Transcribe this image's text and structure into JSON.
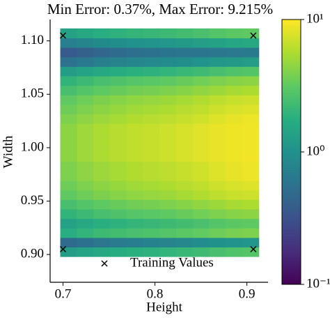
{
  "chart_data": {
    "type": "heatmap",
    "title": "Min Error: 0.37%,  Max Error: 9.215%",
    "xlabel": "Height",
    "ylabel": "Width",
    "x": [
      0.706,
      0.724,
      0.742,
      0.76,
      0.778,
      0.796,
      0.814,
      0.832,
      0.85,
      0.868,
      0.886,
      0.904
    ],
    "y": [
      0.9025,
      0.9114,
      0.9203,
      0.9292,
      0.9381,
      0.947,
      0.9559,
      0.9648,
      0.9737,
      0.9826,
      0.9915,
      1.0004,
      1.0093,
      1.0182,
      1.0271,
      1.036,
      1.0449,
      1.0538,
      1.0627,
      1.0716,
      1.0805,
      1.0894,
      1.0983,
      1.1072
    ],
    "z": [
      [
        1.26,
        1.42,
        1.58,
        1.7,
        1.82,
        1.9,
        2.0,
        2.14,
        2.3,
        2.52,
        2.7,
        2.82
      ],
      [
        0.5,
        0.56,
        0.62,
        0.67,
        0.72,
        0.75,
        0.79,
        0.85,
        0.91,
        1.0,
        1.07,
        1.11
      ],
      [
        1.78,
        2.0,
        2.23,
        2.4,
        2.57,
        2.68,
        2.82,
        3.02,
        3.24,
        3.55,
        3.81,
        3.98
      ],
      [
        1.41,
        1.59,
        1.77,
        1.9,
        2.04,
        2.13,
        2.24,
        2.4,
        2.58,
        2.82,
        3.02,
        3.16
      ],
      [
        1.99,
        2.24,
        2.5,
        2.69,
        2.88,
        3.0,
        3.16,
        3.38,
        3.63,
        3.98,
        4.27,
        4.46
      ],
      [
        2.51,
        2.83,
        3.14,
        3.38,
        3.62,
        3.78,
        3.98,
        4.26,
        4.58,
        5.01,
        5.37,
        5.61
      ],
      [
        3.16,
        3.56,
        3.96,
        4.26,
        4.56,
        4.76,
        5.01,
        5.36,
        5.76,
        6.31,
        6.76,
        7.06
      ],
      [
        3.54,
        3.99,
        4.44,
        4.78,
        5.11,
        5.34,
        5.62,
        6.01,
        6.46,
        7.08,
        7.59,
        7.92
      ],
      [
        3.98,
        4.48,
        4.98,
        5.36,
        5.74,
        5.99,
        6.31,
        6.75,
        7.26,
        7.95,
        8.52,
        8.9
      ],
      [
        3.98,
        4.48,
        4.98,
        5.36,
        5.74,
        5.99,
        6.31,
        6.75,
        7.26,
        7.95,
        8.52,
        8.9
      ],
      [
        4.46,
        5.03,
        5.59,
        6.02,
        6.44,
        6.73,
        7.08,
        7.58,
        8.14,
        8.7,
        9.0,
        9.215
      ],
      [
        4.46,
        5.03,
        5.59,
        6.02,
        6.44,
        6.73,
        7.08,
        7.58,
        8.14,
        8.7,
        9.0,
        9.2
      ],
      [
        4.46,
        5.03,
        5.59,
        6.02,
        6.44,
        6.73,
        7.08,
        7.58,
        8.14,
        8.7,
        9.0,
        9.2
      ],
      [
        4.46,
        5.03,
        5.59,
        6.02,
        6.44,
        6.73,
        7.08,
        7.58,
        8.14,
        8.7,
        9.0,
        9.2
      ],
      [
        3.98,
        4.48,
        4.98,
        5.36,
        5.74,
        5.99,
        6.31,
        6.75,
        7.26,
        7.95,
        8.52,
        8.9
      ],
      [
        3.54,
        3.99,
        4.44,
        4.78,
        5.11,
        5.34,
        5.62,
        6.01,
        6.46,
        7.08,
        7.59,
        7.92
      ],
      [
        3.16,
        3.56,
        3.96,
        4.26,
        4.56,
        4.76,
        5.01,
        5.36,
        5.76,
        6.31,
        6.76,
        7.06
      ],
      [
        2.51,
        2.83,
        3.14,
        3.38,
        3.62,
        3.78,
        3.98,
        4.26,
        4.58,
        5.01,
        5.37,
        5.61
      ],
      [
        1.99,
        2.24,
        2.5,
        2.69,
        2.88,
        3.0,
        3.16,
        3.38,
        3.63,
        3.98,
        4.27,
        4.46
      ],
      [
        1.26,
        1.42,
        1.58,
        1.7,
        1.82,
        1.9,
        2.0,
        2.14,
        2.3,
        2.52,
        2.7,
        2.82
      ],
      [
        0.56,
        0.63,
        0.7,
        0.76,
        0.81,
        0.85,
        0.89,
        0.95,
        1.02,
        1.12,
        1.2,
        1.25
      ],
      [
        0.37,
        0.41,
        0.46,
        0.5,
        0.53,
        0.56,
        0.58,
        0.6,
        0.6,
        0.62,
        0.64,
        0.65
      ],
      [
        0.71,
        0.8,
        0.88,
        0.95,
        1.02,
        1.06,
        1.12,
        1.2,
        1.29,
        1.41,
        1.51,
        1.58
      ],
      [
        1.41,
        1.59,
        1.77,
        1.9,
        2.04,
        2.13,
        2.24,
        2.4,
        2.58,
        2.82,
        3.02,
        3.16
      ]
    ],
    "colormap": "viridis",
    "color_scale": "log",
    "clim": [
      0.1,
      10
    ],
    "cticks": [
      {
        "value": 0.1,
        "label": "10⁻¹"
      },
      {
        "value": 1,
        "label": "10⁰"
      },
      {
        "value": 10,
        "label": "10¹"
      }
    ],
    "xlim": [
      0.686,
      0.923
    ],
    "ylim": [
      0.874,
      1.12
    ],
    "xticks": [
      0.7,
      0.8,
      0.9
    ],
    "yticks": [
      {
        "value": 0.9,
        "label": "0.90"
      },
      {
        "value": 0.95,
        "label": "0.95"
      },
      {
        "value": 1,
        "label": "1.00"
      },
      {
        "value": 1.05,
        "label": "1.05"
      },
      {
        "value": 1.1,
        "label": "1.10"
      }
    ],
    "points": {
      "name": "Training Values",
      "marker": "x",
      "color": "#000000",
      "x": [
        0.7,
        0.7,
        0.907,
        0.907
      ],
      "y": [
        0.905,
        1.105,
        0.905,
        1.105
      ]
    }
  }
}
